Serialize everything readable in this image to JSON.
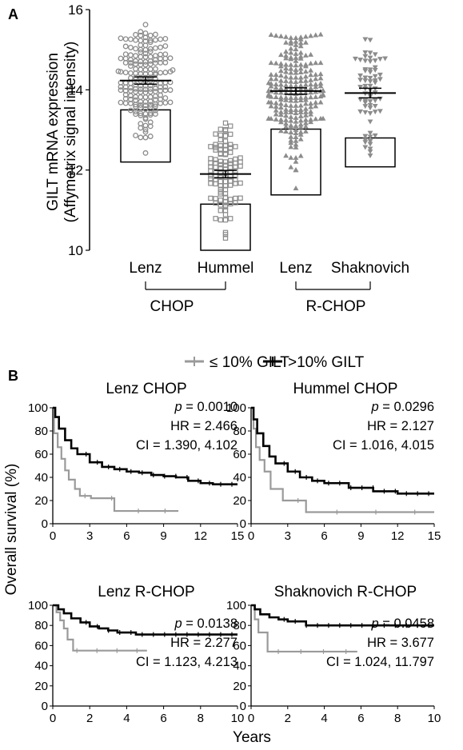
{
  "panel_a": {
    "label": "A",
    "ylabel_line1": "GILT mRNA expression",
    "ylabel_line2": "(Affymetrix signal intensity)",
    "group_labels": [
      "CHOP",
      "R-CHOP"
    ]
  },
  "panel_b": {
    "label": "B",
    "ylabel": "Overall survival (%)",
    "xlabel": "Years",
    "legend": [
      "≤ 10% GILT",
      ">10% GILT"
    ]
  },
  "colors": {
    "low": "#9a9a9a",
    "high": "#000000",
    "marker": "#8c8c8c"
  },
  "chart_data": [
    {
      "type": "scatter",
      "title": "",
      "ylabel": "GILT mRNA expression (Affymetrix signal intensity)",
      "ylim": [
        10,
        16
      ],
      "yticks": [
        10,
        12,
        14,
        16
      ],
      "categories": [
        "Lenz",
        "Hummel",
        "Lenz",
        "Shaknovich"
      ],
      "groups": [
        {
          "name": "CHOP",
          "categories": [
            "Lenz",
            "Hummel"
          ]
        },
        {
          "name": "R-CHOP",
          "categories": [
            "Lenz",
            "Shaknovich"
          ]
        }
      ],
      "series": [
        {
          "category": "Lenz",
          "marker": "open-circle",
          "mean": 14.23,
          "sem": 0.05,
          "box": [
            12.2,
            13.5
          ],
          "range": [
            12.25,
            15.65
          ],
          "n": 181
        },
        {
          "category": "Hummel",
          "marker": "open-square",
          "mean": 11.9,
          "sem": 0.05,
          "box": [
            10.0,
            11.15
          ],
          "range": [
            10.0,
            13.25
          ],
          "n": 102
        },
        {
          "category": "Lenz",
          "marker": "filled-triangle-up",
          "mean": 13.97,
          "sem": 0.04,
          "box": [
            11.38,
            13.02
          ],
          "range": [
            11.4,
            15.4
          ],
          "n": 232
        },
        {
          "category": "Shaknovich",
          "marker": "filled-triangle-down",
          "mean": 13.92,
          "sem": 0.08,
          "box": [
            12.08,
            12.8
          ],
          "range": [
            12.1,
            15.3
          ],
          "n": 69
        }
      ]
    },
    {
      "type": "line",
      "title": "Lenz CHOP",
      "xlabel": "Years",
      "ylabel": "Overall survival (%)",
      "xlim": [
        0,
        15
      ],
      "ylim": [
        0,
        100
      ],
      "xticks": [
        0,
        3,
        6,
        9,
        12,
        15
      ],
      "yticks": [
        0,
        20,
        40,
        60,
        80,
        100
      ],
      "stats": [
        "p = 0.0010",
        "HR = 2.466",
        "CI = 1.390, 4.102"
      ],
      "series": [
        {
          "name": "≤ 10% GILT",
          "x": [
            0,
            0.1,
            0.4,
            0.7,
            1.0,
            1.3,
            1.8,
            2.2,
            3.1,
            5.0,
            10.2
          ],
          "y": [
            100,
            78,
            66,
            56,
            46,
            38,
            30,
            24,
            22,
            11,
            11
          ]
        },
        {
          "name": ">10% GILT",
          "x": [
            0,
            0.2,
            0.5,
            1.0,
            1.5,
            2.0,
            3.0,
            4.0,
            5.0,
            6.0,
            7.0,
            8.0,
            9.0,
            10.0,
            11.0,
            12.0,
            13.0,
            15.0
          ],
          "y": [
            100,
            92,
            82,
            72,
            65,
            60,
            53,
            49,
            47,
            45,
            44,
            42,
            41,
            40,
            37,
            35,
            34,
            34
          ]
        }
      ]
    },
    {
      "type": "line",
      "title": "Hummel CHOP",
      "xlabel": "Years",
      "ylabel": "Overall survival (%)",
      "xlim": [
        0,
        15
      ],
      "ylim": [
        0,
        100
      ],
      "xticks": [
        0,
        3,
        6,
        9,
        12,
        15
      ],
      "yticks": [
        0,
        20,
        40,
        60,
        80,
        100
      ],
      "stats": [
        "p = 0.0296",
        "HR = 2.127",
        "CI = 1.016, 4.015"
      ],
      "series": [
        {
          "name": "≤ 10% GILT",
          "x": [
            0,
            0.2,
            0.4,
            0.7,
            1.1,
            1.6,
            2.6,
            4.5,
            15.0
          ],
          "y": [
            100,
            82,
            66,
            55,
            45,
            30,
            20,
            10,
            10
          ]
        },
        {
          "name": ">10% GILT",
          "x": [
            0,
            0.2,
            0.5,
            1.0,
            1.5,
            2.0,
            3.0,
            4.0,
            5.0,
            6.0,
            8.0,
            10.0,
            12.0,
            15.0
          ],
          "y": [
            100,
            90,
            78,
            67,
            58,
            52,
            45,
            40,
            37,
            35,
            31,
            28,
            26,
            26
          ]
        }
      ]
    },
    {
      "type": "line",
      "title": "Lenz R-CHOP",
      "xlabel": "Years",
      "ylabel": "Overall survival (%)",
      "xlim": [
        0,
        10
      ],
      "ylim": [
        0,
        100
      ],
      "xticks": [
        0,
        2,
        4,
        6,
        8,
        10
      ],
      "yticks": [
        0,
        20,
        40,
        60,
        80,
        100
      ],
      "stats": [
        "p = 0.0138",
        "HR = 2.277",
        "CI = 1.123, 4.213"
      ],
      "series": [
        {
          "name": "≤ 10% GILT",
          "x": [
            0,
            0.2,
            0.4,
            0.6,
            0.8,
            1.1,
            1.5,
            5.1
          ],
          "y": [
            100,
            93,
            85,
            77,
            66,
            55,
            55,
            55
          ]
        },
        {
          "name": ">10% GILT",
          "x": [
            0,
            0.3,
            0.6,
            1.0,
            1.5,
            2.0,
            2.5,
            3.0,
            3.5,
            4.5,
            10.0
          ],
          "y": [
            100,
            96,
            92,
            87,
            83,
            79,
            77,
            75,
            73,
            71,
            71
          ]
        }
      ]
    },
    {
      "type": "line",
      "title": "Shaknovich R-CHOP",
      "xlabel": "Years",
      "ylabel": "Overall survival (%)",
      "xlim": [
        0,
        10
      ],
      "ylim": [
        0,
        100
      ],
      "xticks": [
        0,
        2,
        4,
        6,
        8,
        10
      ],
      "yticks": [
        0,
        20,
        40,
        60,
        80,
        100
      ],
      "stats": [
        "p = 0.0458",
        "HR = 3.677",
        "CI = 1.024, 11.797"
      ],
      "series": [
        {
          "name": "≤ 10% GILT",
          "x": [
            0,
            0.2,
            0.4,
            0.9,
            5.8
          ],
          "y": [
            100,
            86,
            73,
            54,
            54
          ]
        },
        {
          "name": ">10% GILT",
          "x": [
            0,
            0.2,
            0.5,
            1.0,
            1.5,
            2.0,
            3.0,
            10.0
          ],
          "y": [
            100,
            96,
            91,
            88,
            86,
            84,
            80,
            80
          ]
        }
      ]
    }
  ]
}
